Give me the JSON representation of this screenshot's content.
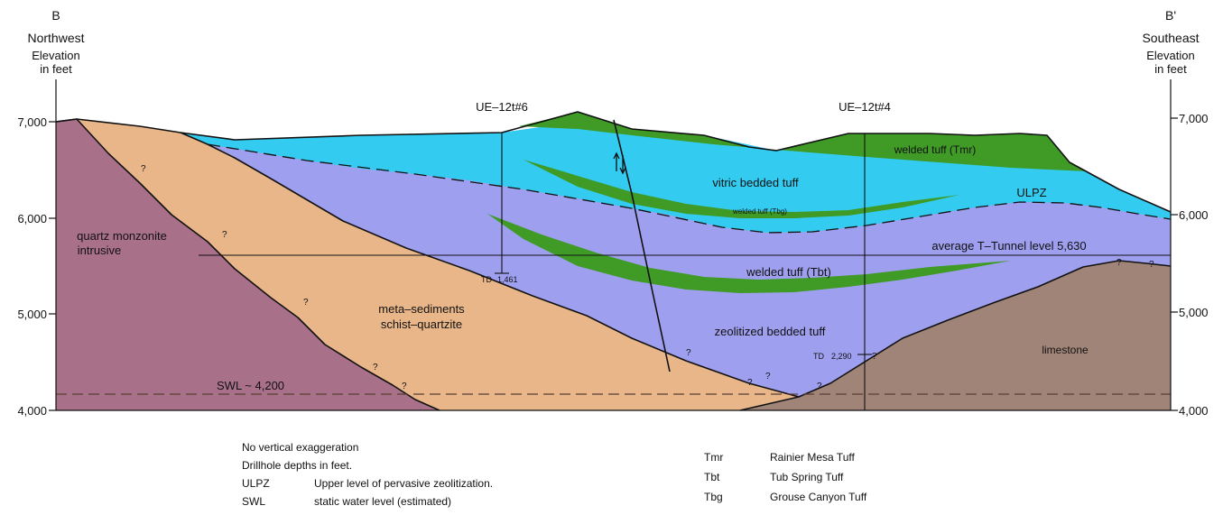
{
  "header": {
    "left_section_letter": "B",
    "left_direction": "Northwest",
    "left_axis_title_line1": "Elevation",
    "left_axis_title_line2": "in  feet",
    "right_section_letter": "B'",
    "right_direction": "Southeast",
    "right_axis_title_line1": "Elevation",
    "right_axis_title_line2": "in  feet"
  },
  "axes": {
    "left_ticks": [
      "7,000",
      "6,000",
      "5,000",
      "4,000"
    ],
    "right_ticks": [
      "7,000",
      "6,000",
      "5,000",
      "4,000"
    ]
  },
  "drillholes": [
    {
      "name": "UE–12t#6",
      "td_label": "TD",
      "td_value": "1,461"
    },
    {
      "name": "UE–12t#4",
      "td_label": "TD",
      "td_value": "2,290"
    }
  ],
  "units": {
    "quartz_line1": "quartz  monzonite",
    "quartz_line2": "intrusive",
    "meta_line1": "meta–sediments",
    "meta_line2": "schist–quartzite",
    "welded_tmr": "welded  tuff  (Tmr)",
    "vitric": "vitric  bedded  tuff",
    "welded_tbg": "welded tuff (Tbg)",
    "ulpz": "ULPZ",
    "tunnel": "average  T–Tunnel level 5,630",
    "welded_tbt": "welded  tuff  (Tbt)",
    "zeolitized": "zeolitized  bedded  tuff",
    "limestone": "limestone",
    "swl": "SWL  ~ 4,200",
    "uncertain_mark": "?"
  },
  "legend_left": {
    "note1": "No  vertical exaggeration",
    "note2": "Drillhole  depths  in  feet.",
    "items": [
      {
        "abbr": "ULPZ",
        "text": "Upper  level  of  pervasive  zeolitization."
      },
      {
        "abbr": "SWL",
        "text": "static  water level  (estimated)"
      }
    ]
  },
  "legend_right": {
    "items": [
      {
        "abbr": "Tmr",
        "text": "Rainier  Mesa  Tuff"
      },
      {
        "abbr": "Tbt",
        "text": "Tub  Spring  Tuff"
      },
      {
        "abbr": "Tbg",
        "text": "Grouse  Canyon  Tuff"
      }
    ]
  },
  "colors": {
    "quartz_monzonite": "#a9708a",
    "meta_sediments": "#e9b68a",
    "zeolitized_tuff": "#9f9ff0",
    "vitric_tuff": "#33ccf0",
    "welded_tuff": "#3f9a26",
    "limestone": "#a08478"
  }
}
